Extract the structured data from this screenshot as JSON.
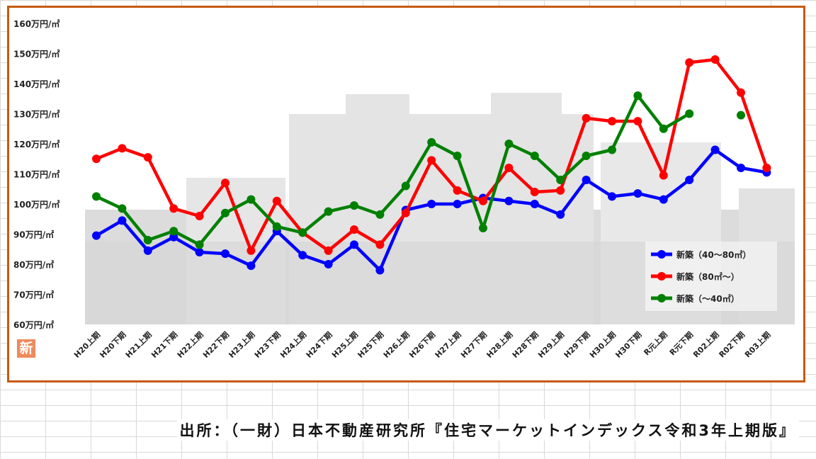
{
  "source": "出所：（一財）日本不動産研究所『住宅マーケットインデックス令和3年上期版』",
  "badge": "新",
  "chart_data": {
    "type": "line",
    "categories": [
      "H20上期",
      "H20下期",
      "H21上期",
      "H21下期",
      "H22上期",
      "H22下期",
      "H23上期",
      "H23下期",
      "H24上期",
      "H24下期",
      "H25上期",
      "H25下期",
      "H26上期",
      "H26下期",
      "H27上期",
      "H27下期",
      "H28上期",
      "H28下期",
      "H29上期",
      "H29下期",
      "H30上期",
      "H30下期",
      "R元上期",
      "R元下期",
      "R02上期",
      "R02下期",
      "R03上期"
    ],
    "yticks": [
      "60万円/㎡",
      "70万円/㎡",
      "80万円/㎡",
      "90万円/㎡",
      "100万円/㎡",
      "110万円/㎡",
      "120万円/㎡",
      "130万円/㎡",
      "140万円/㎡",
      "150万円/㎡",
      "160万円/㎡"
    ],
    "ylim": [
      60,
      160
    ],
    "legend_position": "bottom-right",
    "series": [
      {
        "name": "新築（40～80㎡）",
        "color": "#0000ff",
        "values": [
          89.5,
          94.5,
          84.5,
          89,
          84,
          83.5,
          79.5,
          91,
          83,
          80,
          86.5,
          78,
          98,
          100,
          100,
          102,
          101,
          100,
          96.5,
          108,
          102.5,
          103.5,
          101.5,
          108,
          118,
          112,
          110.5
        ]
      },
      {
        "name": "新築（80㎡～）",
        "color": "#ff0000",
        "values": [
          115,
          118.5,
          115.5,
          98.5,
          96,
          107,
          84.5,
          101,
          90.5,
          84.5,
          91.5,
          86.5,
          97,
          114.5,
          104.5,
          101,
          112,
          104,
          104.5,
          128.5,
          127.5,
          127.5,
          109.5,
          147,
          148,
          137,
          112
        ]
      },
      {
        "name": "新築（～40㎡）",
        "color": "#008000",
        "values": [
          102.5,
          98.5,
          88,
          91,
          86.5,
          97,
          101.5,
          92.5,
          90.5,
          97.5,
          99.5,
          96.5,
          106,
          120.5,
          116,
          92,
          120,
          116,
          108,
          116,
          118,
          136,
          125,
          130,
          null,
          129.5,
          null
        ]
      }
    ]
  }
}
